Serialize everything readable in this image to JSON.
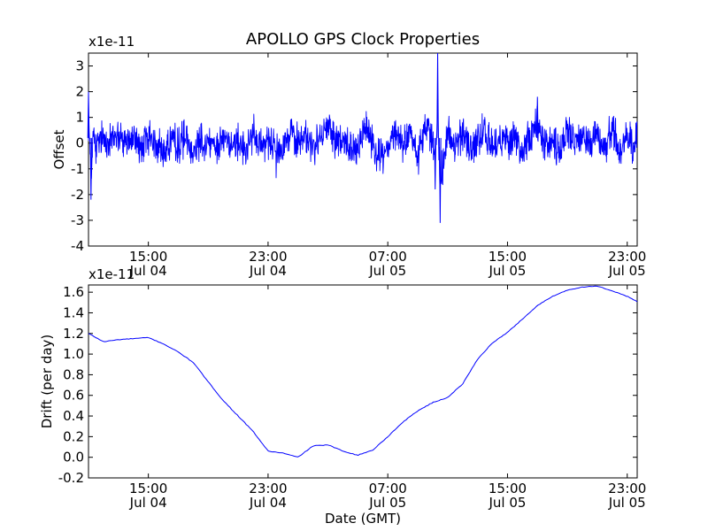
{
  "figure": {
    "title": "APOLLO GPS Clock Properties"
  },
  "chart_data": [
    {
      "type": "line",
      "title": "APOLLO GPS Clock Properties",
      "ylabel": "Offset",
      "y_multiplier": "x1e-11",
      "xlim": [
        "Jul 04 11:00",
        "Jul 05 23:40"
      ],
      "ylim": [
        -4,
        3.5
      ],
      "x_ticks": [
        {
          "time": "Jul 04 15:00",
          "line1": "15:00",
          "line2": "Jul 04"
        },
        {
          "time": "Jul 04 23:00",
          "line1": "23:00",
          "line2": "Jul 04"
        },
        {
          "time": "Jul 05 07:00",
          "line1": "07:00",
          "line2": "Jul 05"
        },
        {
          "time": "Jul 05 15:00",
          "line1": "15:00",
          "line2": "Jul 05"
        },
        {
          "time": "Jul 05 23:00",
          "line1": "23:00",
          "line2": "Jul 05"
        }
      ],
      "y_ticks": [
        -4,
        -3,
        -2,
        -1,
        0,
        1,
        2,
        3
      ],
      "y_tick_labels": [
        "-4",
        "-3",
        "-2",
        "-1",
        "0",
        "1",
        "2",
        "3"
      ],
      "grid": false,
      "series": [
        {
          "color": "#0000ff",
          "style": "noisy",
          "x": [
            "Jul 04 11:00",
            "Jul 04 11:10",
            "Jul 04 11:20",
            "Jul 04 11:30",
            "Jul 04 12:00",
            "Jul 04 12:30",
            "Jul 04 13:00",
            "Jul 04 13:30",
            "Jul 04 14:00",
            "Jul 04 14:30",
            "Jul 04 15:00",
            "Jul 04 15:30",
            "Jul 04 16:00",
            "Jul 04 16:30",
            "Jul 04 17:00",
            "Jul 04 17:30",
            "Jul 04 18:00",
            "Jul 04 18:30",
            "Jul 04 19:00",
            "Jul 04 19:30",
            "Jul 04 20:00",
            "Jul 04 20:30",
            "Jul 04 21:00",
            "Jul 04 21:30",
            "Jul 04 22:00",
            "Jul 04 22:30",
            "Jul 04 23:00",
            "Jul 04 23:30",
            "Jul 05 00:00",
            "Jul 05 00:30",
            "Jul 05 01:00",
            "Jul 05 01:30",
            "Jul 05 02:00",
            "Jul 05 02:30",
            "Jul 05 03:00",
            "Jul 05 03:30",
            "Jul 05 04:00",
            "Jul 05 04:30",
            "Jul 05 05:00",
            "Jul 05 05:30",
            "Jul 05 06:00",
            "Jul 05 06:30",
            "Jul 05 07:00",
            "Jul 05 07:30",
            "Jul 05 08:00",
            "Jul 05 08:30",
            "Jul 05 09:00",
            "Jul 05 09:30",
            "Jul 05 10:00",
            "Jul 05 10:10",
            "Jul 05 10:20",
            "Jul 05 10:30",
            "Jul 05 11:00",
            "Jul 05 11:30",
            "Jul 05 12:00",
            "Jul 05 12:30",
            "Jul 05 13:00",
            "Jul 05 13:30",
            "Jul 05 14:00",
            "Jul 05 14:30",
            "Jul 05 15:00",
            "Jul 05 15:30",
            "Jul 05 16:00",
            "Jul 05 16:30",
            "Jul 05 17:00",
            "Jul 05 17:30",
            "Jul 05 18:00",
            "Jul 05 18:30",
            "Jul 05 19:00",
            "Jul 05 19:30",
            "Jul 05 20:00",
            "Jul 05 20:30",
            "Jul 05 21:00",
            "Jul 05 21:30",
            "Jul 05 22:00",
            "Jul 05 22:30",
            "Jul 05 23:00",
            "Jul 05 23:30",
            "Jul 05 23:40"
          ],
          "y": [
            2.0,
            -2.2,
            1.0,
            -0.5,
            0.5,
            0.2,
            0.8,
            -0.3,
            0.4,
            -0.5,
            0.4,
            0.0,
            -0.9,
            0.3,
            -0.2,
            0.6,
            -0.5,
            0.3,
            0.1,
            -0.4,
            0.6,
            -0.1,
            0.2,
            -1.0,
            0.9,
            -0.4,
            0.3,
            0.0,
            -0.3,
            0.8,
            0.2,
            0.5,
            -0.4,
            0.3,
            1.2,
            0.5,
            0.0,
            -0.6,
            -0.1,
            1.5,
            0.3,
            -1.4,
            0.0,
            0.6,
            -0.2,
            1.0,
            -1.3,
            1.6,
            0.0,
            -1.8,
            3.5,
            -3.1,
            0.8,
            -0.2,
            0.9,
            -0.4,
            0.0,
            1.4,
            -0.7,
            0.6,
            -0.2,
            0.7,
            -1.0,
            0.5,
            1.8,
            -0.3,
            0.2,
            -0.8,
            1.2,
            0.0,
            0.6,
            0.2,
            1.0,
            -0.5,
            1.4,
            -0.8,
            0.5,
            -0.3,
            1.4
          ]
        }
      ]
    },
    {
      "type": "line",
      "title": "",
      "xlabel": "Date (GMT)",
      "ylabel": "Drift (per day)",
      "y_multiplier": "x1e-11",
      "xlim": [
        "Jul 04 11:00",
        "Jul 05 23:40"
      ],
      "ylim": [
        -0.2,
        1.67
      ],
      "x_ticks": [
        {
          "time": "Jul 04 15:00",
          "line1": "15:00",
          "line2": "Jul 04"
        },
        {
          "time": "Jul 04 23:00",
          "line1": "23:00",
          "line2": "Jul 04"
        },
        {
          "time": "Jul 05 07:00",
          "line1": "07:00",
          "line2": "Jul 05"
        },
        {
          "time": "Jul 05 15:00",
          "line1": "15:00",
          "line2": "Jul 05"
        },
        {
          "time": "Jul 05 23:00",
          "line1": "23:00",
          "line2": "Jul 05"
        }
      ],
      "y_ticks": [
        -0.2,
        0.0,
        0.2,
        0.4,
        0.6,
        0.8,
        1.0,
        1.2,
        1.4,
        1.6
      ],
      "y_tick_labels": [
        "-0.2",
        "0.0",
        "0.2",
        "0.4",
        "0.6",
        "0.8",
        "1.0",
        "1.2",
        "1.4",
        "1.6"
      ],
      "grid": false,
      "series": [
        {
          "color": "#0000ff",
          "style": "smooth",
          "x": [
            "Jul 04 11:00",
            "Jul 04 12:00",
            "Jul 04 13:00",
            "Jul 04 14:00",
            "Jul 04 15:00",
            "Jul 04 16:00",
            "Jul 04 17:00",
            "Jul 04 18:00",
            "Jul 04 19:00",
            "Jul 04 20:00",
            "Jul 04 21:00",
            "Jul 04 22:00",
            "Jul 04 23:00",
            "Jul 05 00:00",
            "Jul 05 01:00",
            "Jul 05 02:00",
            "Jul 05 03:00",
            "Jul 05 04:00",
            "Jul 05 05:00",
            "Jul 05 06:00",
            "Jul 05 07:00",
            "Jul 05 08:00",
            "Jul 05 09:00",
            "Jul 05 10:00",
            "Jul 05 11:00",
            "Jul 05 12:00",
            "Jul 05 13:00",
            "Jul 05 14:00",
            "Jul 05 15:00",
            "Jul 05 16:00",
            "Jul 05 17:00",
            "Jul 05 18:00",
            "Jul 05 19:00",
            "Jul 05 20:00",
            "Jul 05 21:00",
            "Jul 05 22:00",
            "Jul 05 23:00",
            "Jul 05 23:40"
          ],
          "y": [
            1.2,
            1.12,
            1.14,
            1.15,
            1.16,
            1.1,
            1.02,
            0.92,
            0.73,
            0.55,
            0.4,
            0.25,
            0.06,
            0.04,
            0.0,
            0.11,
            0.12,
            0.06,
            0.02,
            0.07,
            0.2,
            0.34,
            0.45,
            0.53,
            0.58,
            0.71,
            0.95,
            1.11,
            1.21,
            1.34,
            1.47,
            1.56,
            1.62,
            1.65,
            1.66,
            1.61,
            1.56,
            1.51
          ]
        }
      ]
    }
  ]
}
